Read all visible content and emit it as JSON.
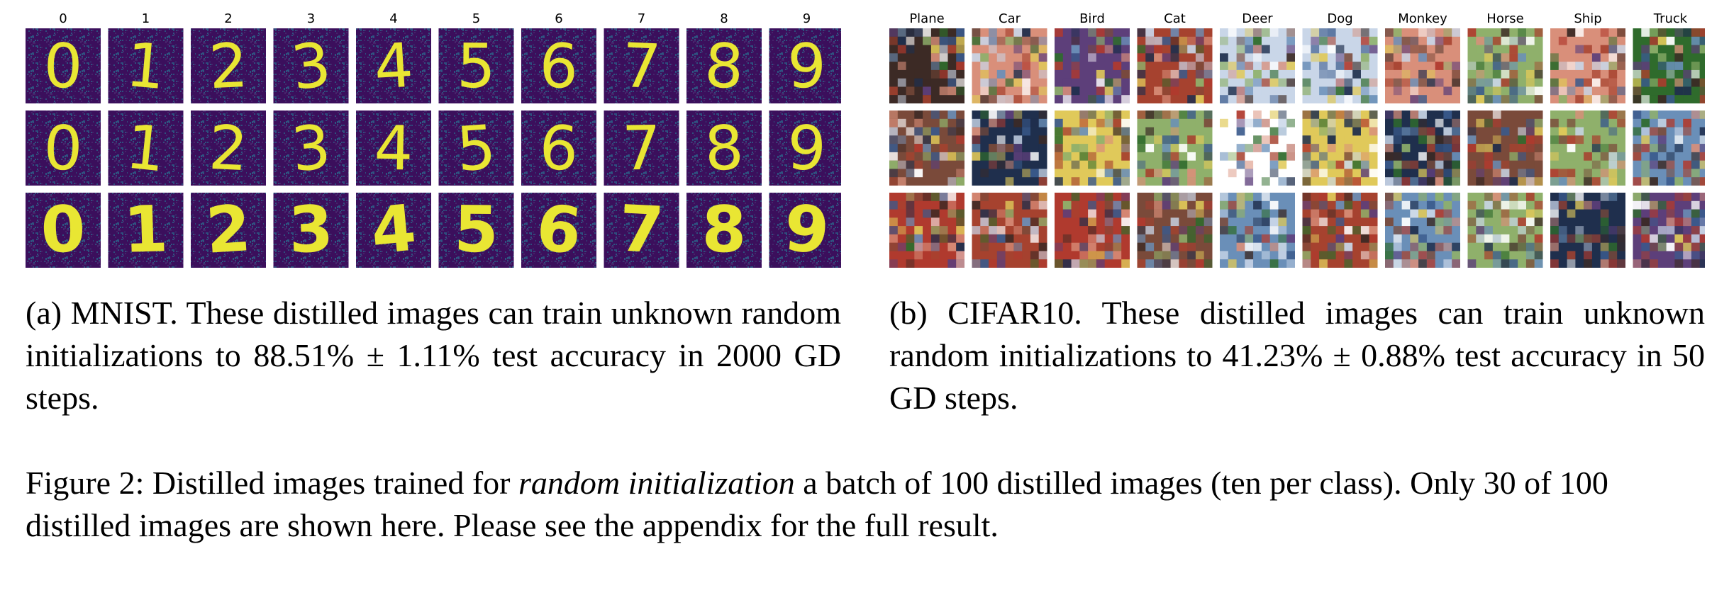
{
  "mnist": {
    "column_labels": [
      "0",
      "1",
      "2",
      "3",
      "4",
      "5",
      "6",
      "7",
      "8",
      "9"
    ],
    "digit_rows": [
      [
        "0",
        "1",
        "2",
        "3",
        "4",
        "5",
        "6",
        "7",
        "8",
        "9"
      ],
      [
        "0",
        "1",
        "2",
        "3",
        "4",
        "5",
        "6",
        "7",
        "8",
        "9"
      ],
      [
        "0",
        "1",
        "2",
        "3",
        "4",
        "5",
        "6",
        "7",
        "8",
        "9"
      ]
    ],
    "colors": {
      "background": "#3b0f5c",
      "stroke": "#e9e633",
      "noise_a": "#48286e",
      "noise_b": "#2a5f87"
    },
    "caption": "(a) MNIST. These distilled images can train unknown random initializations to 88.51% ± 1.11% test accuracy in 2000 GD steps."
  },
  "cifar": {
    "column_labels": [
      "Plane",
      "Car",
      "Bird",
      "Cat",
      "Deer",
      "Dog",
      "Monkey",
      "Horse",
      "Ship",
      "Truck"
    ],
    "caption": "(b) CIFAR10. These distilled images can train unknown random initializations to 41.23% ± 0.88% test accuracy in 50 GD steps."
  },
  "figure_caption": {
    "label": "Figure 2:",
    "before_italic": "Distilled images trained for",
    "italic": "random initialization",
    "after_italic": "a batch of 100 distilled images (ten per class). Only 30 of 100 distilled images are shown here. Please see the appendix for the full result."
  }
}
